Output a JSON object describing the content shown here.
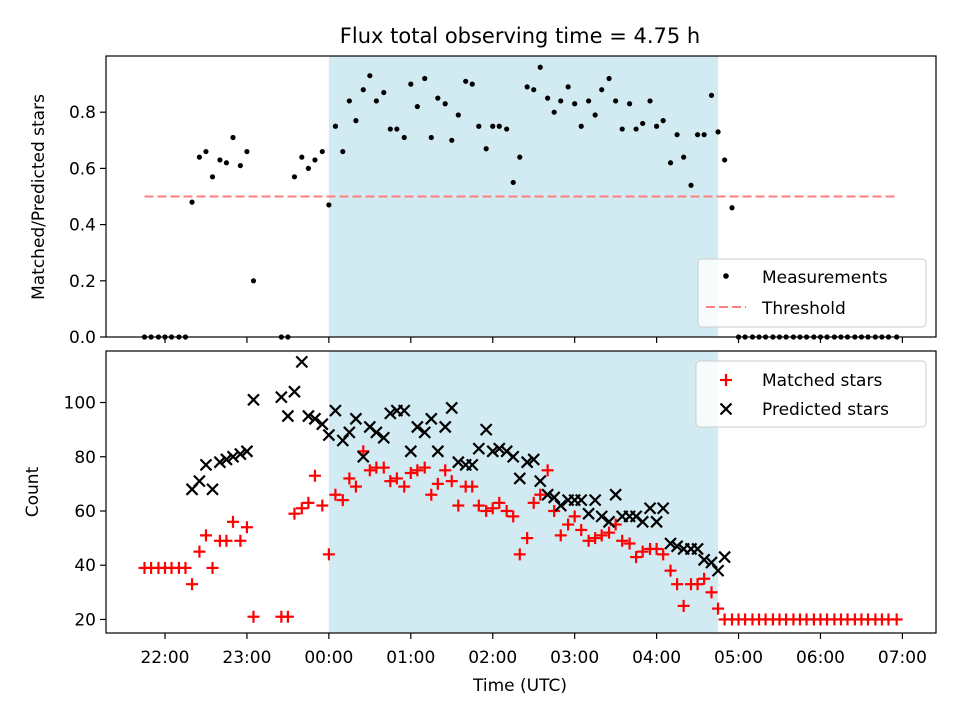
{
  "figure": {
    "title": "Flux total observing time = 4.75 h",
    "xlabel": "Time (UTC)"
  },
  "colors": {
    "measurement": "#000000",
    "threshold": "#ff7f7f",
    "matched": "#ff0000",
    "predicted": "#000000",
    "shade": "#add8e6"
  },
  "chart_data": [
    {
      "type": "scatter",
      "panel": "top",
      "ylabel": "Matched/Predicted stars",
      "xlabel": "",
      "xlim": [
        -2.72,
        7.41
      ],
      "ylim": [
        0,
        1.0
      ],
      "yticks": [
        0.0,
        0.2,
        0.4,
        0.6,
        0.8
      ],
      "shaded_span": [
        0.0,
        4.75
      ],
      "legend_position": "lower-right",
      "legend": [
        "Measurements",
        "Threshold"
      ],
      "threshold": {
        "name": "Threshold",
        "x": [
          -2.25,
          6.93
        ],
        "y": 0.5
      },
      "series": [
        {
          "name": "Measurements",
          "x": [
            -2.25,
            -2.17,
            -2.08,
            -2.0,
            -1.92,
            -1.83,
            -1.75,
            -1.67,
            -1.58,
            -1.5,
            -1.42,
            -1.33,
            -1.25,
            -1.17,
            -1.08,
            -1.0,
            -0.92,
            -0.58,
            -0.5,
            -0.42,
            -0.33,
            -0.25,
            -0.17,
            -0.08,
            0.0,
            0.08,
            0.17,
            0.25,
            0.33,
            0.42,
            0.5,
            0.58,
            0.67,
            0.75,
            0.83,
            0.92,
            1.0,
            1.08,
            1.17,
            1.25,
            1.33,
            1.42,
            1.5,
            1.58,
            1.67,
            1.75,
            1.83,
            1.92,
            2.0,
            2.08,
            2.17,
            2.25,
            2.33,
            2.42,
            2.5,
            2.58,
            2.67,
            2.75,
            2.83,
            2.92,
            3.0,
            3.08,
            3.17,
            3.25,
            3.33,
            3.42,
            3.5,
            3.58,
            3.67,
            3.75,
            3.83,
            3.92,
            4.0,
            4.08,
            4.17,
            4.25,
            4.33,
            4.42,
            4.5,
            4.58,
            4.67,
            4.75,
            4.83,
            4.92,
            5.0,
            5.08,
            5.17,
            5.25,
            5.33,
            5.42,
            5.5,
            5.58,
            5.67,
            5.75,
            5.83,
            5.92,
            6.0,
            6.08,
            6.17,
            6.25,
            6.33,
            6.42,
            6.5,
            6.58,
            6.67,
            6.75,
            6.83,
            6.93
          ],
          "y": [
            0.0,
            0.0,
            0.0,
            0.0,
            0.0,
            0.0,
            0.0,
            0.48,
            0.64,
            0.66,
            0.57,
            0.63,
            0.62,
            0.71,
            0.61,
            0.66,
            0.2,
            0.0,
            0.0,
            0.57,
            0.64,
            0.6,
            0.63,
            0.66,
            0.47,
            0.75,
            0.66,
            0.84,
            0.77,
            0.88,
            0.93,
            0.84,
            0.87,
            0.74,
            0.74,
            0.71,
            0.9,
            0.82,
            0.92,
            0.71,
            0.85,
            0.83,
            0.7,
            0.79,
            0.91,
            0.9,
            0.75,
            0.67,
            0.75,
            0.75,
            0.74,
            0.55,
            0.64,
            0.89,
            0.88,
            0.96,
            0.85,
            0.8,
            0.84,
            0.89,
            0.83,
            0.75,
            0.84,
            0.79,
            0.88,
            0.92,
            0.84,
            0.74,
            0.83,
            0.74,
            0.76,
            0.84,
            0.75,
            0.77,
            0.62,
            0.72,
            0.64,
            0.54,
            0.72,
            0.72,
            0.86,
            0.73,
            0.63,
            0.46,
            0.0,
            0.0,
            0.0,
            0.0,
            0.0,
            0.0,
            0.0,
            0.0,
            0.0,
            0.0,
            0.0,
            0.0,
            0.0,
            0.0,
            0.0,
            0.0,
            0.0,
            0.0,
            0.0,
            0.0,
            0.0,
            0.0,
            0.0,
            0.0
          ]
        }
      ]
    },
    {
      "type": "scatter",
      "panel": "bottom",
      "ylabel": "Count",
      "xlabel": "Time (UTC)",
      "xlim": [
        -2.72,
        7.41
      ],
      "ylim": [
        15,
        119
      ],
      "yticks": [
        20,
        40,
        60,
        80,
        100
      ],
      "xticks": [
        -2,
        -1,
        0,
        1,
        2,
        3,
        4,
        5,
        6,
        7
      ],
      "xticklabels": [
        "22:00",
        "23:00",
        "00:00",
        "01:00",
        "02:00",
        "03:00",
        "04:00",
        "05:00",
        "06:00",
        "07:00"
      ],
      "shaded_span": [
        0.0,
        4.75
      ],
      "legend_position": "upper-right",
      "legend": [
        "Matched stars",
        "Predicted stars"
      ],
      "series": [
        {
          "name": "Matched stars",
          "x": [
            -2.25,
            -2.17,
            -2.08,
            -2.0,
            -1.92,
            -1.83,
            -1.75,
            -1.67,
            -1.58,
            -1.5,
            -1.42,
            -1.33,
            -1.25,
            -1.17,
            -1.08,
            -1.0,
            -0.92,
            -0.58,
            -0.5,
            -0.42,
            -0.33,
            -0.25,
            -0.17,
            -0.08,
            0.0,
            0.08,
            0.17,
            0.25,
            0.33,
            0.42,
            0.5,
            0.58,
            0.67,
            0.75,
            0.83,
            0.92,
            1.0,
            1.08,
            1.17,
            1.25,
            1.33,
            1.42,
            1.5,
            1.58,
            1.67,
            1.75,
            1.83,
            1.92,
            2.0,
            2.08,
            2.17,
            2.25,
            2.33,
            2.42,
            2.5,
            2.58,
            2.67,
            2.75,
            2.83,
            2.92,
            3.0,
            3.08,
            3.17,
            3.25,
            3.33,
            3.42,
            3.5,
            3.58,
            3.67,
            3.75,
            3.83,
            3.92,
            4.0,
            4.08,
            4.17,
            4.25,
            4.33,
            4.42,
            4.5,
            4.58,
            4.67,
            4.75,
            4.83,
            4.92,
            5.0,
            5.08,
            5.17,
            5.25,
            5.33,
            5.42,
            5.5,
            5.58,
            5.67,
            5.75,
            5.83,
            5.92,
            6.0,
            6.08,
            6.17,
            6.25,
            6.33,
            6.42,
            6.5,
            6.58,
            6.67,
            6.75,
            6.83,
            6.93
          ],
          "y": [
            39,
            39,
            39,
            39,
            39,
            39,
            39,
            33,
            45,
            51,
            39,
            49,
            49,
            56,
            49,
            54,
            21,
            21,
            21,
            59,
            61,
            63,
            73,
            62,
            44,
            66,
            64,
            72,
            69,
            82,
            75,
            76,
            76,
            71,
            72,
            69,
            74,
            75,
            76,
            66,
            70,
            75,
            71,
            62,
            69,
            69,
            62,
            60,
            61,
            63,
            60,
            58,
            44,
            50,
            63,
            66,
            75,
            60,
            51,
            55,
            58,
            53,
            49,
            50,
            51,
            52,
            55,
            49,
            48,
            43,
            45,
            46,
            46,
            44,
            38,
            33,
            25,
            33,
            33,
            35,
            30,
            24,
            20,
            20,
            20,
            20,
            20,
            20,
            20,
            20,
            20,
            20,
            20,
            20,
            20,
            20,
            20,
            20,
            20,
            20,
            20,
            20,
            20,
            20,
            20,
            20,
            20,
            20
          ]
        },
        {
          "name": "Predicted stars",
          "x": [
            -1.67,
            -1.58,
            -1.5,
            -1.42,
            -1.33,
            -1.25,
            -1.17,
            -1.08,
            -1.0,
            -0.92,
            -0.58,
            -0.5,
            -0.42,
            -0.33,
            -0.25,
            -0.17,
            -0.08,
            0.0,
            0.08,
            0.17,
            0.25,
            0.33,
            0.42,
            0.5,
            0.58,
            0.67,
            0.75,
            0.83,
            0.92,
            1.0,
            1.08,
            1.17,
            1.25,
            1.33,
            1.42,
            1.5,
            1.58,
            1.67,
            1.75,
            1.83,
            1.92,
            2.0,
            2.08,
            2.17,
            2.25,
            2.33,
            2.42,
            2.5,
            2.58,
            2.67,
            2.75,
            2.83,
            2.92,
            3.0,
            3.08,
            3.17,
            3.25,
            3.33,
            3.42,
            3.5,
            3.58,
            3.67,
            3.75,
            3.83,
            3.92,
            4.0,
            4.08,
            4.17,
            4.25,
            4.33,
            4.42,
            4.5,
            4.58,
            4.67,
            4.75,
            4.83
          ],
          "y": [
            68,
            71,
            77,
            68,
            78,
            79,
            80,
            81,
            82,
            101,
            102,
            95,
            104,
            115,
            95,
            94,
            92,
            88,
            97,
            86,
            89,
            94,
            80,
            91,
            89,
            87,
            96,
            97,
            97,
            82,
            91,
            89,
            94,
            82,
            91,
            98,
            78,
            77,
            77,
            83,
            90,
            82,
            83,
            82,
            80,
            72,
            78,
            79,
            71,
            66,
            65,
            62,
            64,
            64,
            64,
            59,
            64,
            58,
            56,
            66,
            58,
            58,
            58,
            56,
            61,
            56,
            61,
            48,
            47,
            46,
            46,
            46,
            42,
            41,
            38,
            43
          ]
        }
      ]
    }
  ]
}
